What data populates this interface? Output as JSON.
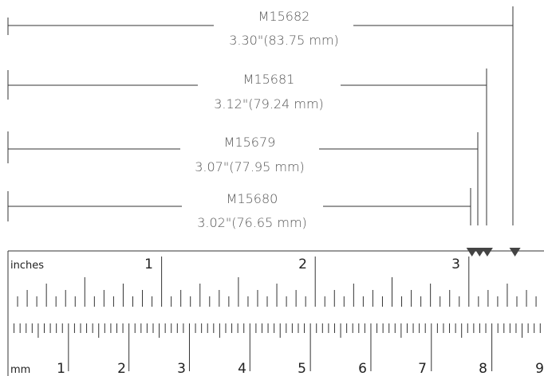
{
  "dimensions": [
    {
      "part": "M15682",
      "length_in": 3.3,
      "inches_label": "3.30\"",
      "mm_label": "(83.75 mm)"
    },
    {
      "part": "M15681",
      "length_in": 3.12,
      "inches_label": "3.12\"",
      "mm_label": "(79.24 mm)"
    },
    {
      "part": "M15679",
      "length_in": 3.07,
      "inches_label": "3.07\"",
      "mm_label": "(77.95 mm)"
    },
    {
      "part": "M15680",
      "length_in": 3.02,
      "inches_label": "3.02\"",
      "mm_label": "(76.65 mm)"
    }
  ],
  "ruler": {
    "inch_unit_label": "inches",
    "mm_unit_label": "mm",
    "inch_numbers": [
      "1",
      "2",
      "3"
    ],
    "mm_numbers": [
      "1",
      "2",
      "3",
      "4",
      "5",
      "6",
      "7",
      "8",
      "9"
    ]
  },
  "colors": {
    "line": "#333333",
    "text": "#555555",
    "marker": "#444444"
  }
}
